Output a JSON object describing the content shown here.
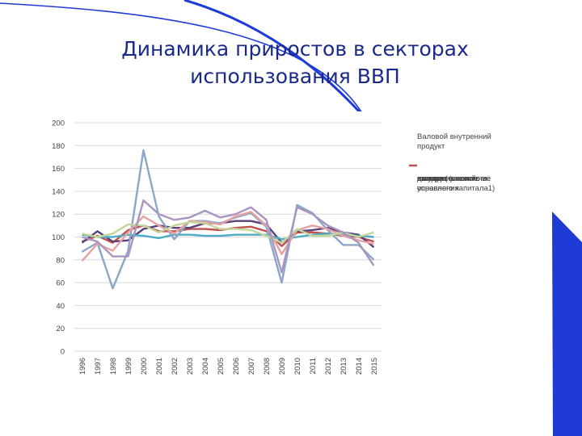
{
  "slide": {
    "title_line1": "Динамика приростов в секторах",
    "title_line2": "использования ВВП",
    "accent_color": "#1f3bd6",
    "title_color": "#1a2a8a"
  },
  "chart_data": {
    "type": "line",
    "ylim": [
      0,
      200
    ],
    "yticks": [
      0,
      20,
      40,
      60,
      80,
      100,
      120,
      140,
      160,
      180,
      200
    ],
    "grid": true,
    "legend_position": "right",
    "categories": [
      "1996",
      "1997",
      "1998",
      "1999",
      "2000",
      "2001",
      "2002",
      "2003",
      "2004",
      "2005",
      "2006",
      "2007",
      "2008",
      "2009",
      "2010",
      "2011",
      "2012",
      "2013",
      "2014",
      "2015"
    ],
    "series": [
      {
        "name": "Валовой внутренний продукт",
        "color": "#c0504d",
        "values": [
          96,
          101,
          95,
          106,
          110,
          105,
          105,
          107,
          107,
          106,
          108,
          109,
          105,
          92,
          104,
          104,
          103,
          101,
          100,
          96
        ]
      },
      {
        "name": "домашних хозяйств",
        "color": "#5a3f7a",
        "values": [
          95,
          105,
          96,
          97,
          107,
          110,
          108,
          108,
          112,
          112,
          114,
          114,
          111,
          95,
          105,
          106,
          108,
          104,
          102,
          91
        ]
      },
      {
        "name": "государственного управления",
        "color": "#4bacc6",
        "values": [
          102,
          100,
          100,
          102,
          101,
          99,
          102,
          102,
          101,
          101,
          102,
          102,
          102,
          98,
          100,
          102,
          103,
          102,
          101,
          100
        ]
      },
      {
        "name": "валовое накопление",
        "color": "#8aa6c8",
        "values": [
          87,
          95,
          55,
          88,
          176,
          118,
          98,
          114,
          114,
          112,
          117,
          121,
          109,
          60,
          128,
          121,
          106,
          93,
          93,
          80
        ]
      },
      {
        "name": "валовое накопление основного капитала1)",
        "color": "#e6a2a0",
        "values": [
          79,
          94,
          88,
          104,
          118,
          110,
          103,
          114,
          113,
          111,
          118,
          122,
          110,
          85,
          106,
          110,
          107,
          101,
          97,
          94
        ]
      },
      {
        "name": "экспорт",
        "color": "#c3d69b",
        "values": [
          103,
          100,
          103,
          111,
          110,
          104,
          110,
          113,
          112,
          107,
          107,
          106,
          101,
          95,
          107,
          101,
          101,
          104,
          100,
          104
        ]
      },
      {
        "name": "импорт (-)",
        "color": "#a995bf",
        "values": [
          100,
          96,
          83,
          83,
          132,
          120,
          115,
          117,
          123,
          117,
          120,
          126,
          115,
          69,
          126,
          120,
          110,
          104,
          95,
          75
        ]
      }
    ]
  }
}
